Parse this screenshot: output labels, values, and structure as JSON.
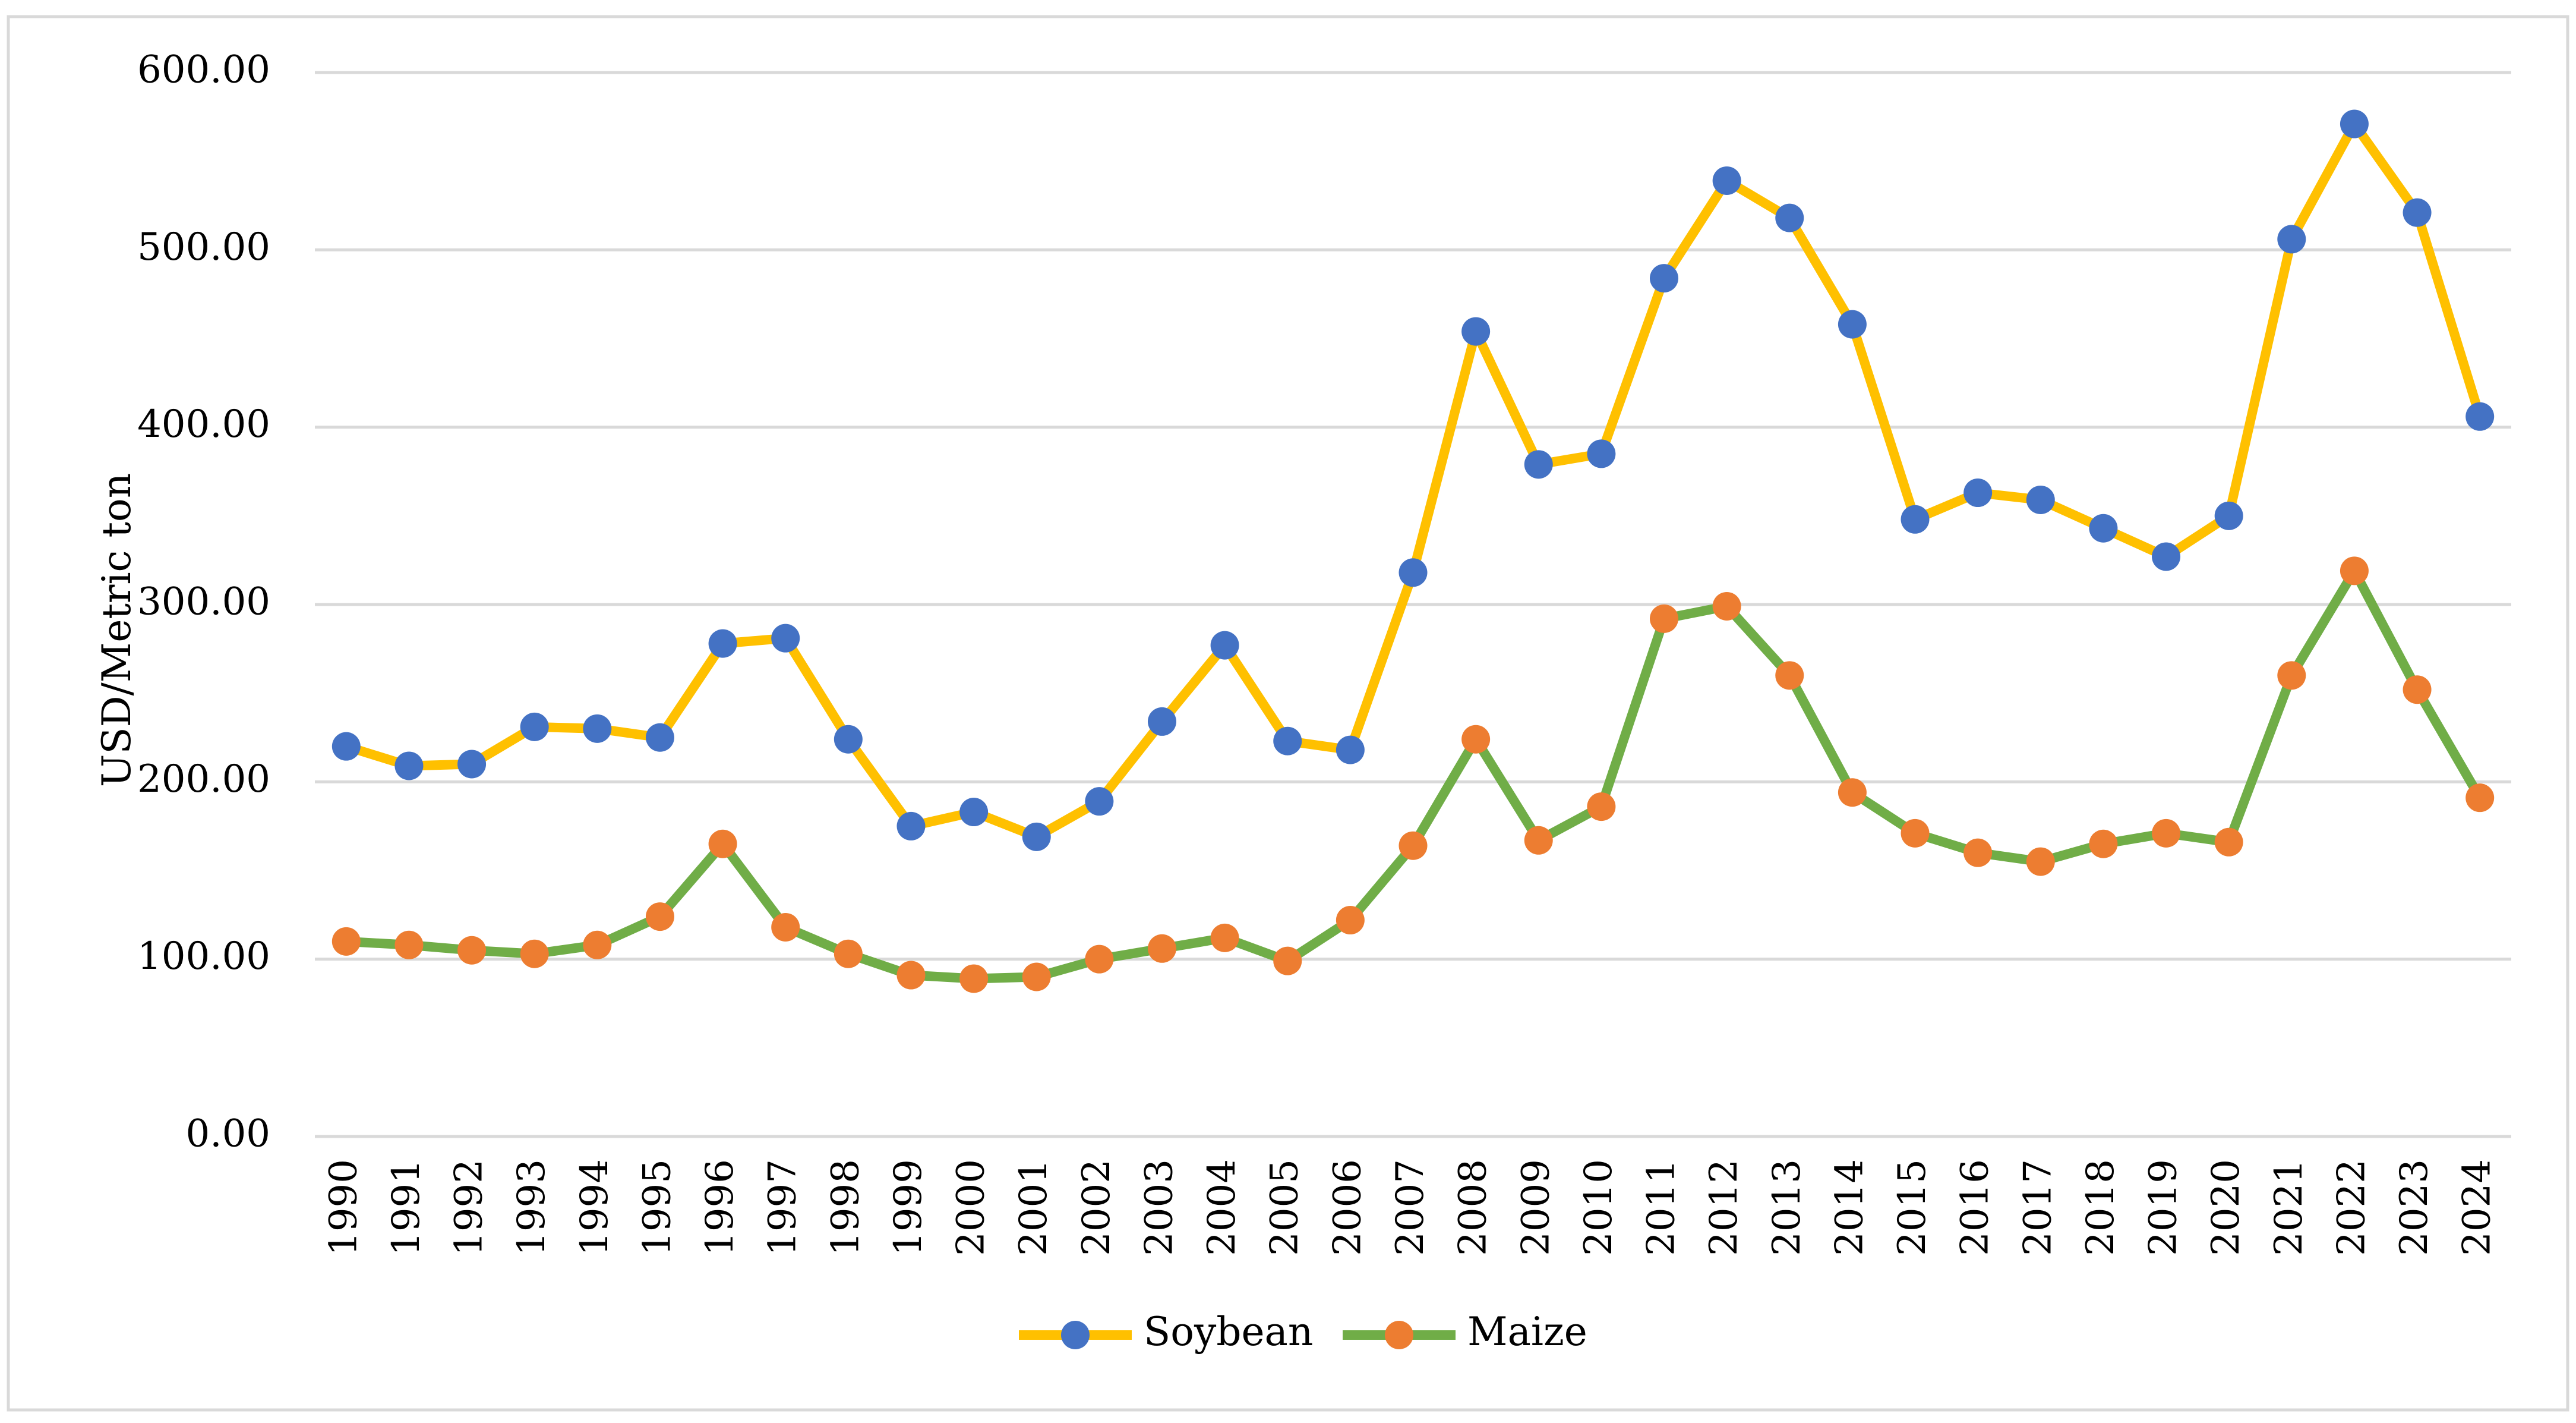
{
  "chart_data": {
    "type": "line",
    "title": "",
    "xlabel": "",
    "ylabel": "USD/Metric ton",
    "ylim": [
      0,
      600
    ],
    "yticks": [
      "0.00",
      "100.00",
      "200.00",
      "300.00",
      "400.00",
      "500.00",
      "600.00"
    ],
    "grid": "horizontal",
    "legend_position": "bottom-center",
    "categories": [
      "1990",
      "1991",
      "1992",
      "1993",
      "1994",
      "1995",
      "1996",
      "1997",
      "1998",
      "1999",
      "2000",
      "2001",
      "2002",
      "2003",
      "2004",
      "2005",
      "2006",
      "2007",
      "2008",
      "2009",
      "2010",
      "2011",
      "2012",
      "2013",
      "2014",
      "2015",
      "2016",
      "2017",
      "2018",
      "2019",
      "2020",
      "2021",
      "2022",
      "2023",
      "2024"
    ],
    "series": [
      {
        "name": "Soybean",
        "line_color": "#FFC000",
        "marker_color": "#4472C4",
        "values": [
          220,
          209,
          210,
          231,
          230,
          225,
          278,
          281,
          224,
          175,
          183,
          169,
          189,
          234,
          277,
          223,
          218,
          318,
          454,
          379,
          385,
          484,
          539,
          518,
          458,
          348,
          363,
          359,
          343,
          327,
          350,
          506,
          571,
          521,
          406
        ]
      },
      {
        "name": "Maize",
        "line_color": "#70AD47",
        "marker_color": "#ED7D31",
        "values": [
          110,
          108,
          105,
          103,
          108,
          124,
          165,
          118,
          103,
          91,
          89,
          90,
          100,
          106,
          112,
          99,
          122,
          164,
          224,
          167,
          186,
          292,
          299,
          260,
          194,
          171,
          160,
          155,
          165,
          171,
          166,
          260,
          319,
          252,
          191
        ]
      }
    ]
  }
}
